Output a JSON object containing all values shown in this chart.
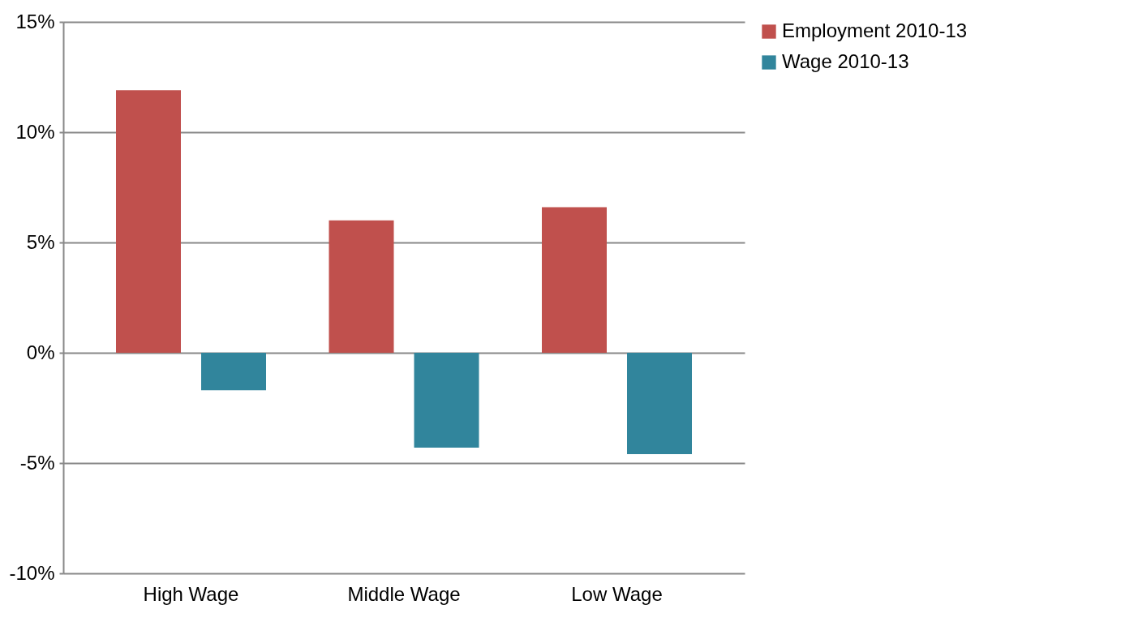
{
  "chart_data": {
    "type": "bar",
    "categories": [
      "High Wage",
      "Middle Wage",
      "Low Wage"
    ],
    "series": [
      {
        "name": "Employment 2010-13",
        "color": "#c0504d",
        "values": [
          11.9,
          6.0,
          6.6
        ]
      },
      {
        "name": "Wage 2010-13",
        "color": "#31859c",
        "values": [
          -1.7,
          -4.3,
          -4.6
        ]
      }
    ],
    "ylim": [
      -10,
      15
    ],
    "yticks": [
      {
        "value": -10,
        "label": "-10%"
      },
      {
        "value": -5,
        "label": "-5%"
      },
      {
        "value": 0,
        "label": "0%"
      },
      {
        "value": 5,
        "label": "5%"
      },
      {
        "value": 10,
        "label": "10%"
      },
      {
        "value": 15,
        "label": "15%"
      }
    ],
    "grid": "y",
    "legend": "right"
  }
}
